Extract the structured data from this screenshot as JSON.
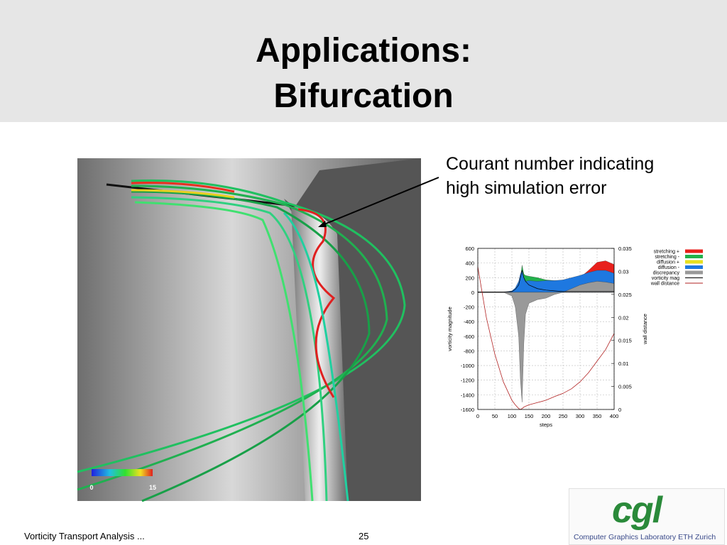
{
  "header": {
    "title": [
      "Applications:",
      "Bifurcation"
    ]
  },
  "annotation": {
    "lines": [
      "Courant number indicating",
      "high simulation error"
    ]
  },
  "figure": {
    "colorbar": {
      "min": 0,
      "max": 15
    }
  },
  "chart_data": {
    "type": "area",
    "xlabel": "steps",
    "ylabel": "vorticity magnitude",
    "y2label": "wall distance",
    "x": [
      0,
      25,
      50,
      75,
      100,
      110,
      120,
      125,
      130,
      135,
      140,
      150,
      175,
      200,
      225,
      250,
      275,
      300,
      325,
      350,
      375,
      400
    ],
    "xlim": [
      0,
      400
    ],
    "xticks": [
      0,
      50,
      100,
      150,
      200,
      250,
      300,
      350,
      400
    ],
    "ylim": [
      -1600,
      600
    ],
    "yticks": [
      -1600,
      -1400,
      -1200,
      -1000,
      -800,
      -600,
      -400,
      -200,
      0,
      200,
      400,
      600
    ],
    "y2lim": [
      0,
      0.035
    ],
    "y2ticks": [
      0,
      0.005,
      0.01,
      0.015,
      0.02,
      0.025,
      0.03,
      0.035
    ],
    "grid": true,
    "legend": "right",
    "series": [
      {
        "name": "stretching +",
        "color": "#e8201c",
        "values": [
          0,
          0,
          0,
          0,
          0,
          10,
          20,
          30,
          50,
          40,
          30,
          20,
          10,
          10,
          10,
          20,
          60,
          200,
          300,
          410,
          430,
          380
        ]
      },
      {
        "name": "stretching -",
        "color": "#22b14c",
        "values": [
          0,
          0,
          0,
          0,
          10,
          30,
          80,
          200,
          370,
          250,
          230,
          220,
          200,
          170,
          160,
          160,
          160,
          170,
          180,
          190,
          190,
          180
        ]
      },
      {
        "name": "diffusion +",
        "color": "#e8e020",
        "values": [
          0,
          0,
          0,
          0,
          0,
          5,
          10,
          20,
          30,
          20,
          15,
          10,
          10,
          10,
          10,
          10,
          10,
          10,
          10,
          10,
          10,
          10
        ]
      },
      {
        "name": "diffusion -",
        "color": "#1e78e0",
        "values": [
          0,
          0,
          0,
          0,
          20,
          60,
          150,
          250,
          300,
          200,
          150,
          160,
          150,
          160,
          160,
          170,
          200,
          230,
          270,
          300,
          300,
          260
        ]
      },
      {
        "name": "discrepancy",
        "color": "#999999",
        "values": [
          0,
          0,
          0,
          0,
          -50,
          -200,
          -600,
          -1200,
          -1500,
          -700,
          -300,
          -150,
          -100,
          -80,
          -30,
          0,
          50,
          100,
          130,
          150,
          140,
          120
        ]
      },
      {
        "name": "vorticity mag",
        "color": "#000000",
        "kind": "line",
        "values": [
          5,
          5,
          5,
          5,
          10,
          40,
          100,
          200,
          300,
          200,
          150,
          100,
          50,
          30,
          20,
          10,
          10,
          10,
          10,
          10,
          10,
          10
        ]
      },
      {
        "name": "wall distance",
        "color": "#b22222",
        "kind": "line",
        "axis": "y2",
        "values": [
          0.031,
          0.02,
          0.012,
          0.006,
          0.002,
          0.001,
          0.0002,
          0,
          0.0002,
          0.0005,
          0.0007,
          0.001,
          0.0015,
          0.002,
          0.0028,
          0.0035,
          0.0045,
          0.006,
          0.008,
          0.0105,
          0.013,
          0.0165
        ]
      }
    ]
  },
  "footer": {
    "text": "Vorticity Transport Analysis ...",
    "page": 25
  },
  "logo": {
    "mark": "cgl",
    "text": "Computer Graphics Laboratory ETH Zurich"
  }
}
